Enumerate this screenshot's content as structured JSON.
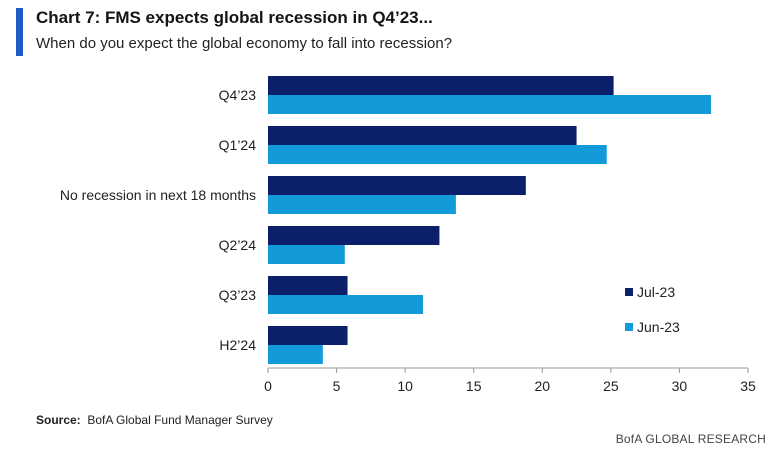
{
  "header": {
    "title": "Chart 7: FMS expects global recession in Q4’23...",
    "subtitle": "When do you expect the global economy to fall into recession?"
  },
  "footer": {
    "source_label": "Source:",
    "source_text": "BofA Global Fund Manager Survey",
    "brand": "BofA GLOBAL RESEARCH"
  },
  "colors": {
    "accent": "#1e5bc6",
    "series_jul": "#0c1f6b",
    "series_jun": "#139ad8"
  },
  "chart_data": {
    "type": "bar",
    "orientation": "horizontal",
    "categories": [
      "Q4’23",
      "Q1’24",
      "No recession in next 18 months",
      "Q2’24",
      "Q3’23",
      "H2’24"
    ],
    "series": [
      {
        "name": "Jul-23",
        "color": "#0c1f6b",
        "values": [
          25.2,
          22.5,
          18.8,
          12.5,
          5.8,
          5.8
        ]
      },
      {
        "name": "Jun-23",
        "color": "#139ad8",
        "values": [
          32.3,
          24.7,
          13.7,
          5.6,
          11.3,
          4.0
        ]
      }
    ],
    "xlim": [
      0,
      35
    ],
    "xticks": [
      0,
      5,
      10,
      15,
      20,
      25,
      30,
      35
    ],
    "legend_position": "right",
    "grid": false
  }
}
